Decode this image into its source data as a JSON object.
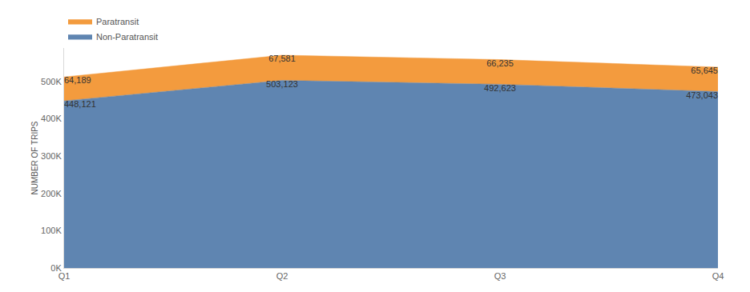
{
  "chart_data": {
    "type": "area",
    "categories": [
      "Q1",
      "Q2",
      "Q3",
      "Q4"
    ],
    "series": [
      {
        "name": "Non-Paratransit",
        "color": "#5f85b1",
        "values": [
          448121,
          503123,
          492623,
          473043
        ],
        "value_labels": [
          "448,121",
          "503,123",
          "492,623",
          "473,043"
        ]
      },
      {
        "name": "Paratransit",
        "color": "#f39b3e",
        "values": [
          64189,
          67581,
          66235,
          65645
        ],
        "value_labels": [
          "64,189",
          "67,581",
          "66,235",
          "65,645"
        ]
      }
    ],
    "ylabel": "NUMBER OF TRIPS",
    "ylim": [
      0,
      590000
    ],
    "yticks": [
      {
        "value": 0,
        "label": "0K"
      },
      {
        "value": 100000,
        "label": "100K"
      },
      {
        "value": 200000,
        "label": "200K"
      },
      {
        "value": 300000,
        "label": "300K"
      },
      {
        "value": 400000,
        "label": "400K"
      },
      {
        "value": 500000,
        "label": "500K"
      }
    ],
    "grid": true,
    "stacked": true,
    "data_labels": true,
    "legend": "top left"
  }
}
